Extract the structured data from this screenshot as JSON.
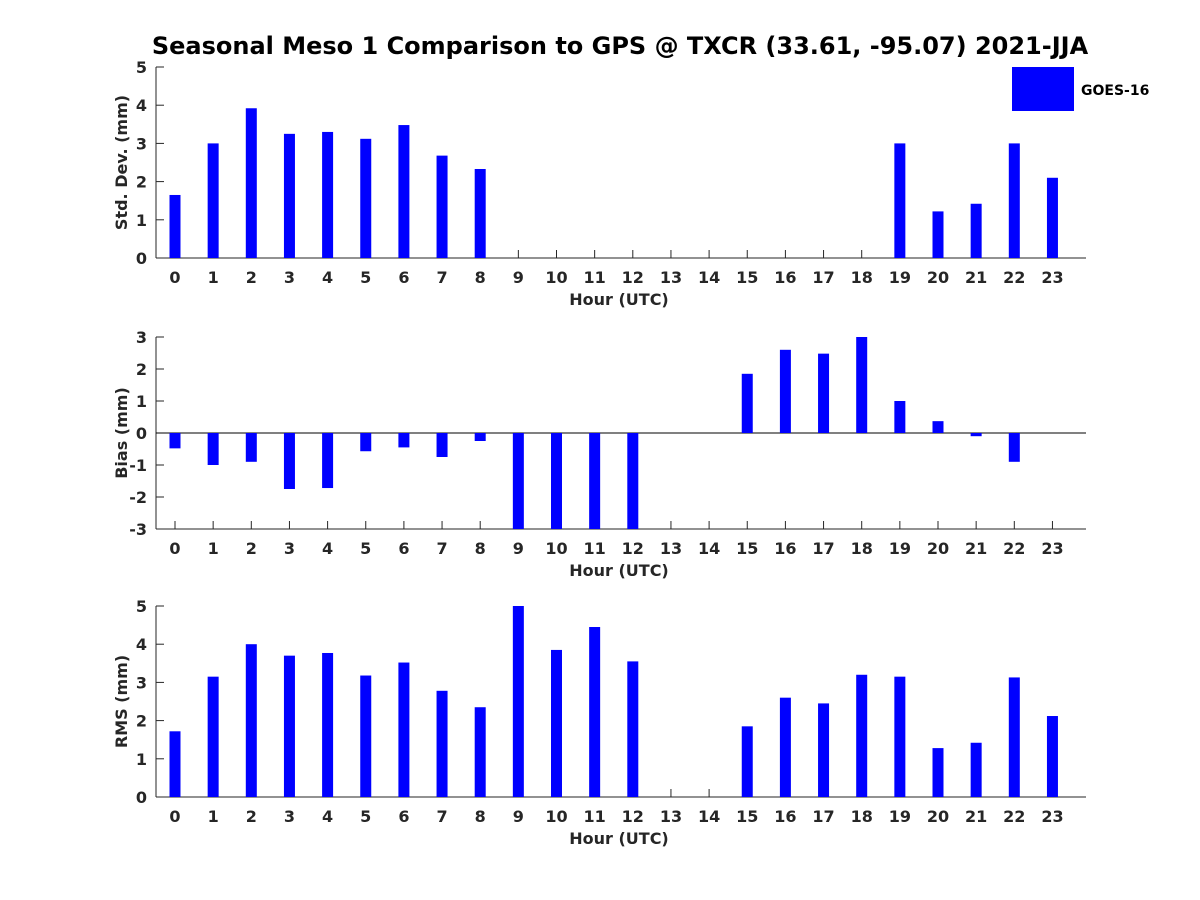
{
  "title": "Seasonal Meso 1 Comparison to GPS @ TXCR (33.61, -95.07) 2021-JJA",
  "legend": {
    "label": "GOES-16",
    "color": "#0000ff",
    "placement": "top-right"
  },
  "chart_data": [
    {
      "type": "bar",
      "xlabel": "Hour (UTC)",
      "ylabel": "Std. Dev. (mm)",
      "ylim": [
        0,
        5
      ],
      "yticks": [
        0,
        1,
        2,
        3,
        4,
        5
      ],
      "categories": [
        "0",
        "1",
        "2",
        "3",
        "4",
        "5",
        "6",
        "7",
        "8",
        "9",
        "10",
        "11",
        "12",
        "13",
        "14",
        "15",
        "16",
        "17",
        "18",
        "19",
        "20",
        "21",
        "22",
        "23"
      ],
      "series": [
        {
          "name": "GOES-16",
          "values": [
            1.65,
            3.0,
            3.92,
            3.25,
            3.3,
            3.12,
            3.48,
            2.68,
            2.33,
            null,
            null,
            null,
            null,
            null,
            null,
            null,
            null,
            null,
            null,
            3.0,
            1.22,
            1.42,
            3.0,
            2.1
          ]
        }
      ]
    },
    {
      "type": "bar",
      "xlabel": "Hour (UTC)",
      "ylabel": "Bias (mm)",
      "ylim": [
        -3,
        3
      ],
      "yticks": [
        -3,
        -2,
        -1,
        0,
        1,
        2,
        3
      ],
      "zero_line": true,
      "categories": [
        "0",
        "1",
        "2",
        "3",
        "4",
        "5",
        "6",
        "7",
        "8",
        "9",
        "10",
        "11",
        "12",
        "13",
        "14",
        "15",
        "16",
        "17",
        "18",
        "19",
        "20",
        "21",
        "22",
        "23"
      ],
      "series": [
        {
          "name": "GOES-16",
          "values": [
            -0.48,
            -1.0,
            -0.9,
            -1.75,
            -1.72,
            -0.57,
            -0.45,
            -0.75,
            -0.25,
            -3.0,
            -3.0,
            -3.0,
            -3.0,
            null,
            null,
            1.85,
            2.6,
            2.48,
            3.0,
            1.0,
            0.37,
            -0.1,
            -0.9,
            null
          ]
        }
      ]
    },
    {
      "type": "bar",
      "xlabel": "Hour (UTC)",
      "ylabel": "RMS (mm)",
      "ylim": [
        0,
        5
      ],
      "yticks": [
        0,
        1,
        2,
        3,
        4,
        5
      ],
      "categories": [
        "0",
        "1",
        "2",
        "3",
        "4",
        "5",
        "6",
        "7",
        "8",
        "9",
        "10",
        "11",
        "12",
        "13",
        "14",
        "15",
        "16",
        "17",
        "18",
        "19",
        "20",
        "21",
        "22",
        "23"
      ],
      "series": [
        {
          "name": "GOES-16",
          "values": [
            1.72,
            3.15,
            4.0,
            3.7,
            3.77,
            3.18,
            3.52,
            2.78,
            2.35,
            5.0,
            3.85,
            4.45,
            3.55,
            null,
            null,
            1.85,
            2.6,
            2.45,
            3.2,
            3.15,
            1.28,
            1.42,
            3.13,
            2.12
          ]
        }
      ]
    }
  ]
}
